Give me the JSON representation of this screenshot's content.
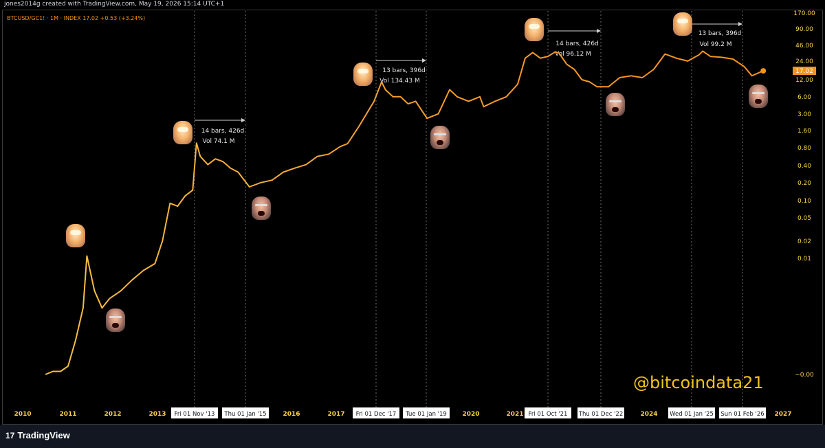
{
  "header": {
    "credit": "jones2014g created with TradingView.com, May 19, 2026 15:14 UTC+1"
  },
  "legend": {
    "symbol": "BTCUSD/GC1! · 1M · INDEX",
    "last": "17.02",
    "change": "+0.53 (+3.24%)"
  },
  "watermark": "@bitcoindata21",
  "footer": {
    "brand": "TradingView"
  },
  "colors": {
    "line_early": "#f5c242",
    "line_late": "#f7931a",
    "background": "#000000",
    "price_tag": "#f7931a"
  },
  "chart_data": {
    "type": "line",
    "scale": "log",
    "series": [
      {
        "x": [
          "2010-07",
          "2010-09",
          "2010-11",
          "2011-01",
          "2011-03",
          "2011-05",
          "2011-06",
          "2011-08",
          "2011-10",
          "2011-12",
          "2012-03",
          "2012-06",
          "2012-09",
          "2012-12",
          "2013-02",
          "2013-04",
          "2013-06",
          "2013-08",
          "2013-10",
          "2013-11",
          "2013-12",
          "2014-02",
          "2014-04",
          "2014-06",
          "2014-08",
          "2014-10",
          "2015-01",
          "2015-04",
          "2015-07",
          "2015-10",
          "2016-01",
          "2016-04",
          "2016-07",
          "2016-10",
          "2017-01",
          "2017-03",
          "2017-06",
          "2017-08",
          "2017-10",
          "2017-12",
          "2018-01",
          "2018-03",
          "2018-05",
          "2018-07",
          "2018-09",
          "2018-12",
          "2019-03",
          "2019-06",
          "2019-08",
          "2019-11",
          "2020-02",
          "2020-03",
          "2020-06",
          "2020-09",
          "2020-12",
          "2021-02",
          "2021-04",
          "2021-06",
          "2021-08",
          "2021-10",
          "2021-11",
          "2022-01",
          "2022-03",
          "2022-05",
          "2022-07",
          "2022-09",
          "2022-12",
          "2023-03",
          "2023-06",
          "2023-09",
          "2023-12",
          "2024-03",
          "2024-06",
          "2024-09",
          "2024-12",
          "2025-01",
          "2025-03",
          "2025-06",
          "2025-09",
          "2025-12",
          "2026-02",
          "2026-04",
          "2026-05"
        ],
        "values": [
          7e-05,
          8e-05,
          8e-05,
          0.0001,
          0.0003,
          0.0012,
          0.011,
          0.0025,
          0.0012,
          0.0018,
          0.0025,
          0.004,
          0.006,
          0.008,
          0.02,
          0.09,
          0.08,
          0.12,
          0.15,
          0.92,
          0.55,
          0.4,
          0.5,
          0.45,
          0.35,
          0.3,
          0.17,
          0.2,
          0.22,
          0.3,
          0.35,
          0.4,
          0.55,
          0.6,
          0.8,
          0.9,
          1.8,
          3,
          5,
          11,
          8,
          6,
          6,
          4.5,
          5,
          2.5,
          3,
          8,
          6,
          5,
          6,
          4,
          5,
          6,
          10,
          28,
          35,
          28,
          30,
          36,
          34,
          22,
          18,
          12,
          11,
          9,
          9,
          13,
          14,
          13,
          18,
          33,
          28,
          25,
          32,
          37,
          30,
          29,
          27,
          20,
          14,
          16,
          17.02
        ]
      }
    ],
    "last_value": "17.02",
    "y_ticks": [
      "170.00",
      "90.00",
      "46.00",
      "24.00",
      "12.00",
      "6.00",
      "3.00",
      "1.60",
      "0.80",
      "0.40",
      "0.20",
      "0.10",
      "0.05",
      "0.02",
      "0.01",
      "−0.00"
    ],
    "x_ticks": [
      "2010",
      "2011",
      "2012",
      "2013",
      "2016",
      "2017",
      "2020",
      "2021",
      "2024",
      "2027"
    ],
    "date_markers": [
      "Fri 01 Nov '13",
      "Thu 01 Jan '15",
      "Fri 01 Dec '17",
      "Tue 01 Jan '19",
      "Fri 01 Oct '21",
      "Thu 01 Dec '22",
      "Wed 01 Jan '25",
      "Sun 01 Feb '26"
    ],
    "annotations": [
      {
        "bars": "14 bars, 426d",
        "vol": "Vol 74.1 M"
      },
      {
        "bars": "13 bars, 396d",
        "vol": "Vol 134.43 M"
      },
      {
        "bars": "14 bars, 426d",
        "vol": "Vol 96.12 M"
      },
      {
        "bars": "13 bars, 396d",
        "vol": "Vol 99.2 M"
      }
    ]
  }
}
